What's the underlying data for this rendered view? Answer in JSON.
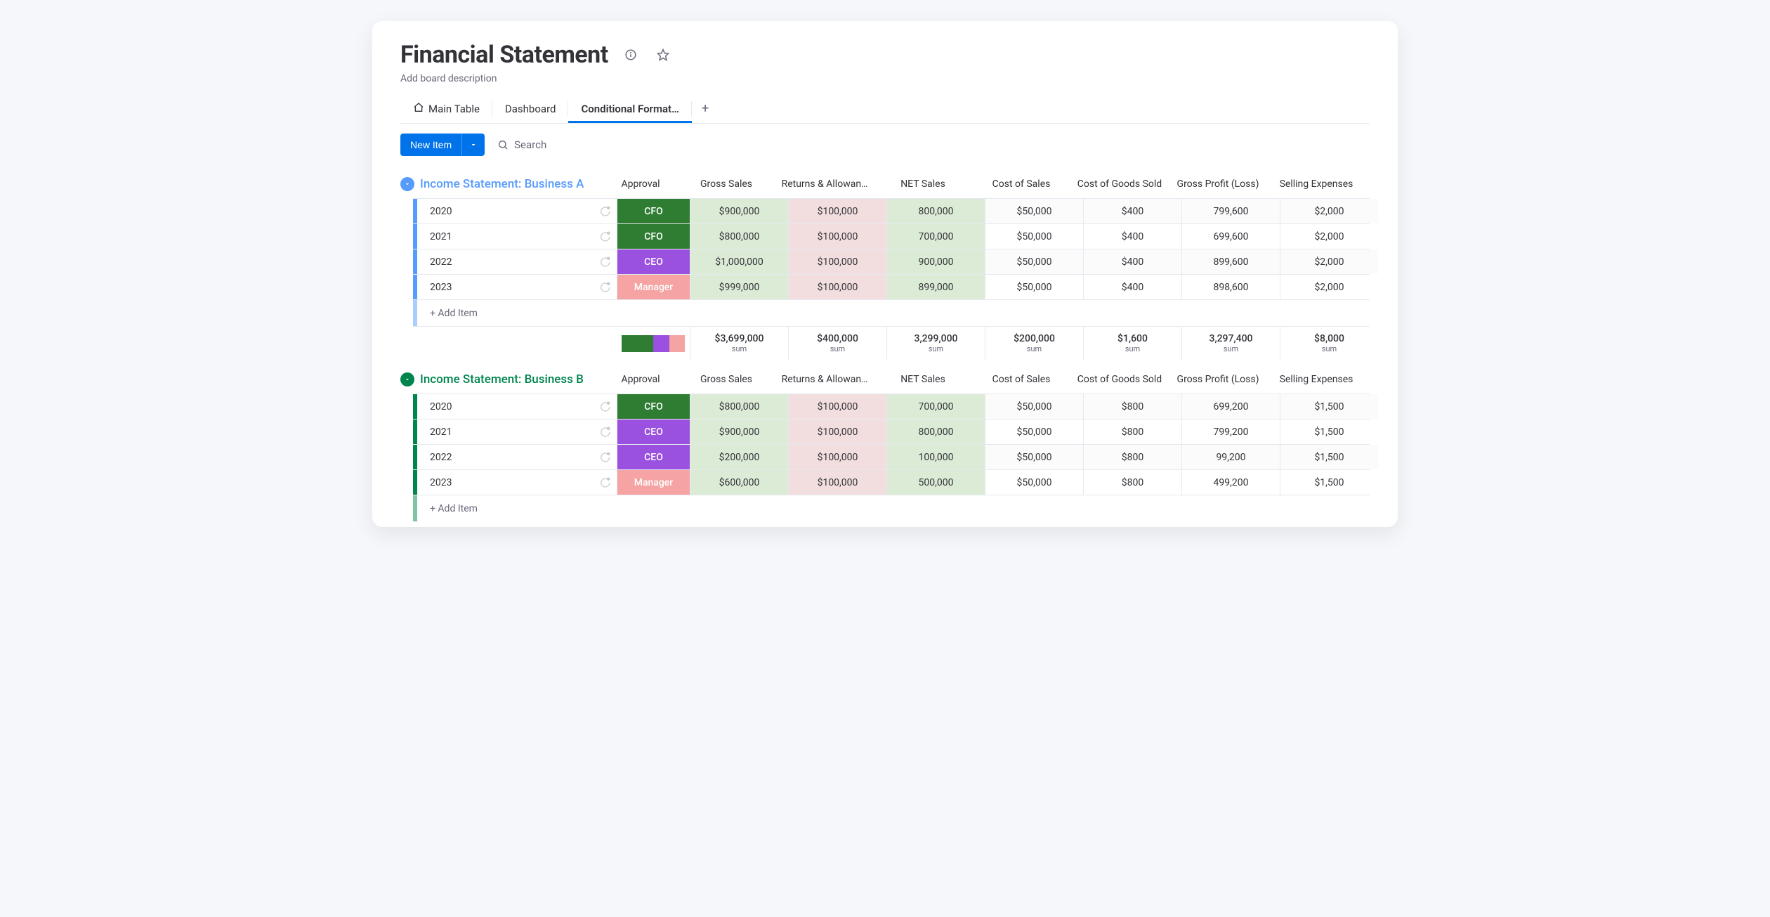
{
  "header": {
    "title": "Financial Statement",
    "description": "Add board description"
  },
  "tabs": [
    {
      "label": "Main Table",
      "icon": "home",
      "active": false
    },
    {
      "label": "Dashboard",
      "active": false
    },
    {
      "label": "Conditional Format…",
      "active": true
    }
  ],
  "toolbar": {
    "newItemLabel": "New Item",
    "searchPlaceholder": "Search"
  },
  "columns": [
    "Approval",
    "Gross Sales",
    "Returns & Allowan…",
    "NET Sales",
    "Cost of Sales",
    "Cost of Goods Sold",
    "Gross Profit (Loss)",
    "Selling Expenses"
  ],
  "colors": {
    "cfo": "#2e7d32",
    "ceo": "#9b51e0",
    "manager": "#f5a3a3",
    "grossSalesBg": "#dcebd6",
    "returnsBg": "#f3dedf",
    "netSalesBg": "#dcebd6",
    "plainA": "#f9f9f9",
    "plainB": "#ffffff",
    "groupA": "#579bfc",
    "groupB": "#00854d"
  },
  "addItemLabel": "+ Add Item",
  "groups": [
    {
      "title": "Income Statement: Business A",
      "color": "#579bfc",
      "toggleColor": "#579bfc",
      "titleColor": "#579bfc",
      "rows": [
        {
          "name": "2020",
          "approval": "CFO",
          "approvalColor": "#2e7d32",
          "grossSales": "$900,000",
          "returns": "$100,000",
          "netSales": "800,000",
          "costSales": "$50,000",
          "cogs": "$400",
          "grossProfit": "799,600",
          "selling": "$2,000"
        },
        {
          "name": "2021",
          "approval": "CFO",
          "approvalColor": "#2e7d32",
          "grossSales": "$800,000",
          "returns": "$100,000",
          "netSales": "700,000",
          "costSales": "$50,000",
          "cogs": "$400",
          "grossProfit": "699,600",
          "selling": "$2,000"
        },
        {
          "name": "2022",
          "approval": "CEO",
          "approvalColor": "#9b51e0",
          "grossSales": "$1,000,000",
          "returns": "$100,000",
          "netSales": "900,000",
          "costSales": "$50,000",
          "cogs": "$400",
          "grossProfit": "899,600",
          "selling": "$2,000"
        },
        {
          "name": "2023",
          "approval": "Manager",
          "approvalColor": "#f5a3a3",
          "grossSales": "$999,000",
          "returns": "$100,000",
          "netSales": "899,000",
          "costSales": "$50,000",
          "cogs": "$400",
          "grossProfit": "898,600",
          "selling": "$2,000"
        }
      ],
      "approvalBar": [
        {
          "color": "#2e7d32",
          "weight": 2
        },
        {
          "color": "#9b51e0",
          "weight": 1
        },
        {
          "color": "#f5a3a3",
          "weight": 1
        }
      ],
      "sums": {
        "grossSales": "$3,699,000",
        "returns": "$400,000",
        "netSales": "3,299,000",
        "costSales": "$200,000",
        "cogs": "$1,600",
        "grossProfit": "3,297,400",
        "selling": "$8,000",
        "label": "sum"
      }
    },
    {
      "title": "Income Statement: Business B",
      "color": "#00854d",
      "toggleColor": "#00854d",
      "titleColor": "#00854d",
      "rows": [
        {
          "name": "2020",
          "approval": "CFO",
          "approvalColor": "#2e7d32",
          "grossSales": "$800,000",
          "returns": "$100,000",
          "netSales": "700,000",
          "costSales": "$50,000",
          "cogs": "$800",
          "grossProfit": "699,200",
          "selling": "$1,500"
        },
        {
          "name": "2021",
          "approval": "CEO",
          "approvalColor": "#9b51e0",
          "grossSales": "$900,000",
          "returns": "$100,000",
          "netSales": "800,000",
          "costSales": "$50,000",
          "cogs": "$800",
          "grossProfit": "799,200",
          "selling": "$1,500"
        },
        {
          "name": "2022",
          "approval": "CEO",
          "approvalColor": "#9b51e0",
          "grossSales": "$200,000",
          "returns": "$100,000",
          "netSales": "100,000",
          "costSales": "$50,000",
          "cogs": "$800",
          "grossProfit": "99,200",
          "selling": "$1,500"
        },
        {
          "name": "2023",
          "approval": "Manager",
          "approvalColor": "#f5a3a3",
          "grossSales": "$600,000",
          "returns": "$100,000",
          "netSales": "500,000",
          "costSales": "$50,000",
          "cogs": "$800",
          "grossProfit": "499,200",
          "selling": "$1,500"
        }
      ]
    }
  ]
}
